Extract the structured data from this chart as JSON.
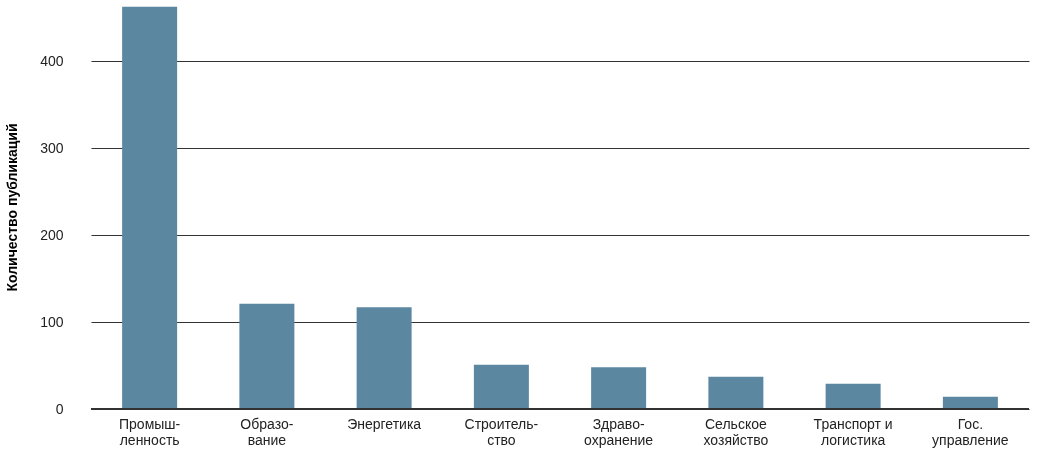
{
  "chart_data": {
    "type": "bar",
    "ylabel": "Количество публикаций",
    "categories": [
      "Промыш-\nленность",
      "Образо-\nвание",
      "Энергетика",
      "Строитель-\nство",
      "Здраво-\nохранение",
      "Сельское\nхозяйство",
      "Транспорт и\nлогистика",
      "Гос.\nуправление"
    ],
    "values": [
      463,
      121,
      117,
      51,
      48,
      37,
      29,
      14
    ],
    "color": "#5b88a0",
    "ylim": [
      0,
      465
    ],
    "yticks": [
      0,
      100,
      200,
      300,
      400
    ],
    "grid": "y"
  }
}
